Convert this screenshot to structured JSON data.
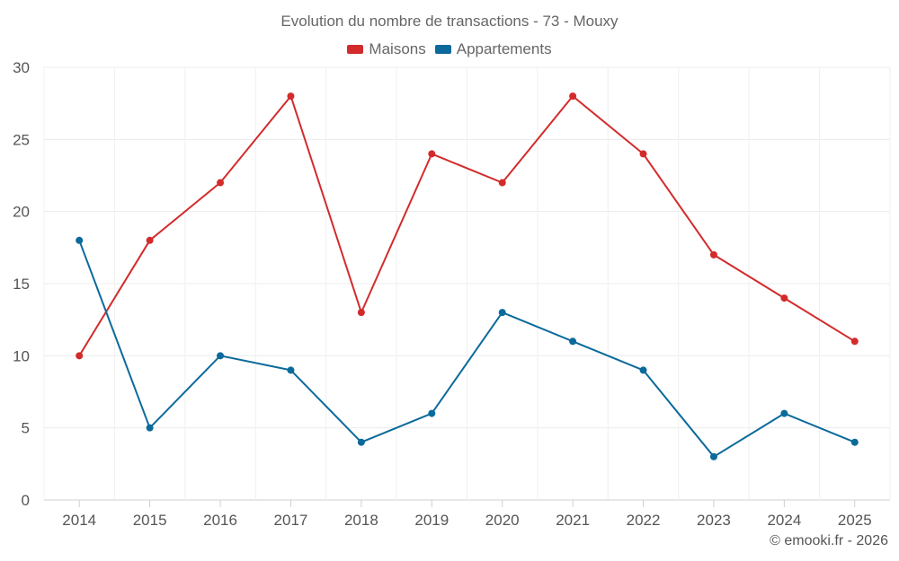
{
  "chart_data": {
    "type": "line",
    "title": "Evolution du nombre de transactions - 73 - Mouxy",
    "xlabel": "",
    "ylabel": "",
    "ylim": [
      0,
      30
    ],
    "yticks": [
      0,
      5,
      10,
      15,
      20,
      25,
      30
    ],
    "x": [
      "2014",
      "2015",
      "2016",
      "2017",
      "2018",
      "2019",
      "2020",
      "2021",
      "2022",
      "2023",
      "2024",
      "2025"
    ],
    "grid": true,
    "legend_position": "top-center",
    "series": [
      {
        "name": "Maisons",
        "color": "#d32b2b",
        "values": [
          10,
          18,
          22,
          28,
          13,
          24,
          22,
          28,
          24,
          17,
          14,
          11
        ]
      },
      {
        "name": "Appartements",
        "color": "#0b6a9b",
        "values": [
          18,
          5,
          10,
          9,
          4,
          6,
          13,
          11,
          9,
          3,
          6,
          4
        ]
      }
    ]
  },
  "credit": "© emooki.fr - 2026"
}
